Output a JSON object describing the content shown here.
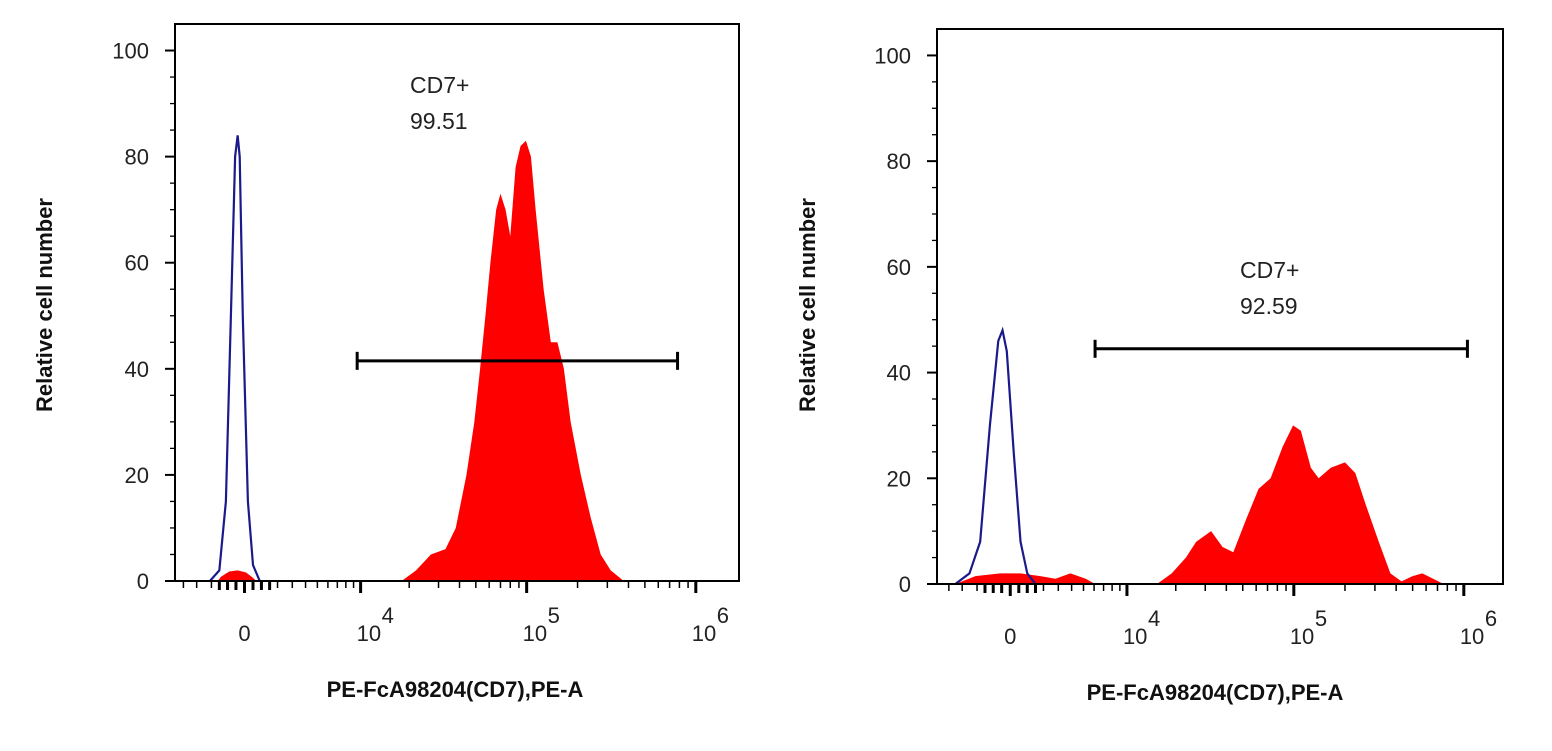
{
  "chart_data": [
    {
      "type": "area",
      "xlabel": "PE-FcA98204(CD7),PE-A",
      "ylabel": "Relative cell number",
      "x_scale": "biexponential",
      "xlim": [
        -4700,
        1800000
      ],
      "ylim": [
        0,
        105
      ],
      "yticks": [
        0,
        20,
        40,
        60,
        80,
        100
      ],
      "ytick_labels": [
        "0",
        "20",
        "40",
        "60",
        "80",
        "100"
      ],
      "xticks": [
        {
          "value": 0,
          "label": "0",
          "exp": ""
        },
        {
          "value": 10000,
          "label": "10",
          "exp": "4"
        },
        {
          "value": 100000,
          "label": "10",
          "exp": "5"
        },
        {
          "value": 1000000,
          "label": "10",
          "exp": "6"
        }
      ],
      "grid": false,
      "colors": {
        "sample": "#ff0000",
        "control": "#1a1a8c"
      },
      "gate": {
        "name": "CD7+",
        "percent": "99.51",
        "x_range": [
          9500,
          780000
        ],
        "y": 41.5
      },
      "series": [
        {
          "role": "sample",
          "fill": true,
          "points": [
            [
              -1600,
              0
            ],
            [
              -1400,
              0.8
            ],
            [
              -900,
              1.8
            ],
            [
              -400,
              2
            ],
            [
              100,
              1.6
            ],
            [
              500,
              0.6
            ],
            [
              700,
              0
            ],
            [
              18000,
              0
            ],
            [
              22000,
              2
            ],
            [
              27000,
              5
            ],
            [
              33000,
              6
            ],
            [
              38000,
              10
            ],
            [
              44000,
              20
            ],
            [
              49000,
              30
            ],
            [
              53000,
              40
            ],
            [
              57000,
              50
            ],
            [
              61000,
              60
            ],
            [
              66000,
              70
            ],
            [
              70000,
              73
            ],
            [
              75000,
              70
            ],
            [
              80000,
              65
            ],
            [
              86000,
              78
            ],
            [
              92000,
              82
            ],
            [
              99000,
              83
            ],
            [
              106000,
              80
            ],
            [
              113000,
              70
            ],
            [
              126000,
              55
            ],
            [
              139000,
              45
            ],
            [
              152000,
              45
            ],
            [
              166000,
              40
            ],
            [
              182000,
              30
            ],
            [
              209000,
              20
            ],
            [
              239000,
              12
            ],
            [
              274000,
              5
            ],
            [
              314000,
              2
            ],
            [
              375000,
              0
            ]
          ]
        },
        {
          "role": "control",
          "fill": false,
          "points": [
            [
              -2100,
              0
            ],
            [
              -1500,
              2
            ],
            [
              -1100,
              15
            ],
            [
              -800,
              50
            ],
            [
              -550,
              80
            ],
            [
              -400,
              84
            ],
            [
              -280,
              80
            ],
            [
              -100,
              50
            ],
            [
              200,
              15
            ],
            [
              500,
              3
            ],
            [
              900,
              0
            ]
          ]
        }
      ]
    },
    {
      "type": "area",
      "xlabel": "PE-FcA98204(CD7),PE-A",
      "ylabel": "Relative cell number",
      "x_scale": "biexponential",
      "xlim": [
        -5000,
        1700000
      ],
      "ylim": [
        0,
        105
      ],
      "yticks": [
        0,
        20,
        40,
        60,
        80,
        100
      ],
      "ytick_labels": [
        "0",
        "20",
        "40",
        "60",
        "80",
        "100"
      ],
      "xticks": [
        {
          "value": 0,
          "label": "0",
          "exp": ""
        },
        {
          "value": 10000,
          "label": "10",
          "exp": "4"
        },
        {
          "value": 100000,
          "label": "10",
          "exp": "5"
        },
        {
          "value": 1000000,
          "label": "10",
          "exp": "6"
        }
      ],
      "grid": false,
      "colors": {
        "sample": "#ff0000",
        "control": "#1a1a8c"
      },
      "gate": {
        "name": "CD7+",
        "percent": "92.59",
        "x_range": [
          6100,
          1050000
        ],
        "y": 44.5
      },
      "series": [
        {
          "role": "sample",
          "fill": true,
          "points": [
            [
              -3500,
              0
            ],
            [
              -2100,
              1.5
            ],
            [
              -590,
              2
            ],
            [
              590,
              2
            ],
            [
              1800,
              1.5
            ],
            [
              2800,
              1
            ],
            [
              3900,
              2
            ],
            [
              5200,
              1
            ],
            [
              6100,
              0
            ],
            [
              15400,
              0
            ],
            [
              18900,
              2
            ],
            [
              23000,
              5
            ],
            [
              26500,
              8
            ],
            [
              32500,
              10
            ],
            [
              38000,
              7
            ],
            [
              44000,
              6
            ],
            [
              52000,
              12
            ],
            [
              62000,
              18
            ],
            [
              73000,
              20
            ],
            [
              86000,
              26
            ],
            [
              99000,
              30
            ],
            [
              110000,
              29
            ],
            [
              126000,
              22
            ],
            [
              140000,
              20
            ],
            [
              165000,
              22
            ],
            [
              200000,
              23
            ],
            [
              230000,
              21
            ],
            [
              265000,
              15
            ],
            [
              316000,
              8
            ],
            [
              370000,
              2
            ],
            [
              430000,
              0.5
            ],
            [
              500000,
              1.5
            ],
            [
              570000,
              2
            ],
            [
              660000,
              1
            ],
            [
              760000,
              0
            ]
          ]
        },
        {
          "role": "control",
          "fill": false,
          "points": [
            [
              -3500,
              0
            ],
            [
              -2500,
              2
            ],
            [
              -1800,
              8
            ],
            [
              -1200,
              30
            ],
            [
              -700,
              46
            ],
            [
              -450,
              48
            ],
            [
              -200,
              44
            ],
            [
              200,
              25
            ],
            [
              600,
              8
            ],
            [
              1000,
              2
            ],
            [
              1500,
              0
            ]
          ]
        }
      ]
    }
  ]
}
